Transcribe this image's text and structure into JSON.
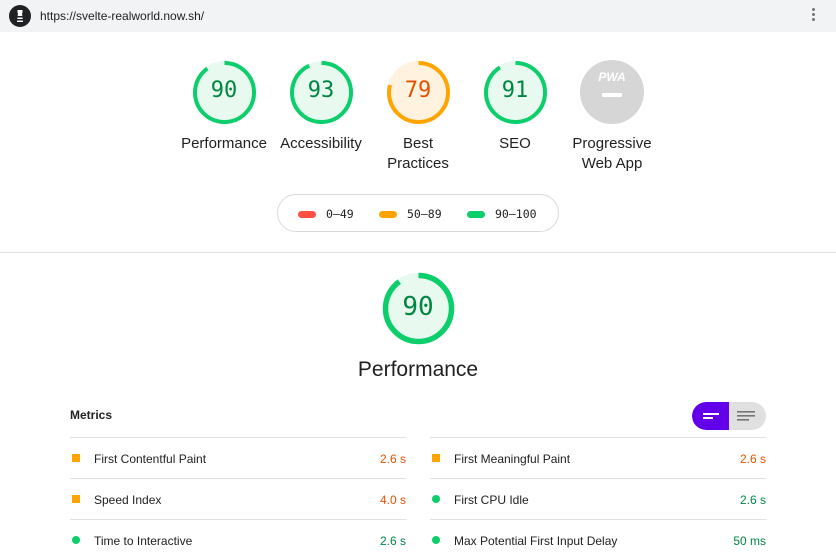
{
  "browser": {
    "url": "https://svelte-realworld.now.sh/"
  },
  "colors": {
    "pass": "#0cce6b",
    "average": "#ffa400",
    "fail": "#ff4e42",
    "pwa": "#d6d6d6",
    "toggle_active": "#6200ea"
  },
  "summary": {
    "gauges": [
      {
        "score": "90",
        "label_line1": "Performance",
        "label_line2": "",
        "level": 0.9,
        "status": "pass"
      },
      {
        "score": "93",
        "label_line1": "Accessibility",
        "label_line2": "",
        "level": 0.93,
        "status": "pass"
      },
      {
        "score": "79",
        "label_line1": "Best",
        "label_line2": "Practices",
        "level": 0.79,
        "status": "average"
      },
      {
        "score": "91",
        "label_line1": "SEO",
        "label_line2": "",
        "level": 0.91,
        "status": "pass"
      }
    ],
    "pwa": {
      "badge": "PWA",
      "label_line1": "Progressive",
      "label_line2": "Web App",
      "icon": "pwa-badge-icon"
    }
  },
  "legend": {
    "fail": "0–49",
    "average": "50–89",
    "pass": "90–100"
  },
  "performance": {
    "score": "90",
    "level": 0.9,
    "title": "Performance"
  },
  "metrics": {
    "title": "Metrics",
    "left": [
      {
        "label": "First Contentful Paint",
        "value": "2.6 s",
        "status": "average"
      },
      {
        "label": "Speed Index",
        "value": "4.0 s",
        "status": "average"
      },
      {
        "label": "Time to Interactive",
        "value": "2.6 s",
        "status": "pass"
      }
    ],
    "right": [
      {
        "label": "First Meaningful Paint",
        "value": "2.6 s",
        "status": "average"
      },
      {
        "label": "First CPU Idle",
        "value": "2.6 s",
        "status": "pass"
      },
      {
        "label": "Max Potential First Input Delay",
        "value": "50 ms",
        "status": "pass"
      }
    ]
  }
}
